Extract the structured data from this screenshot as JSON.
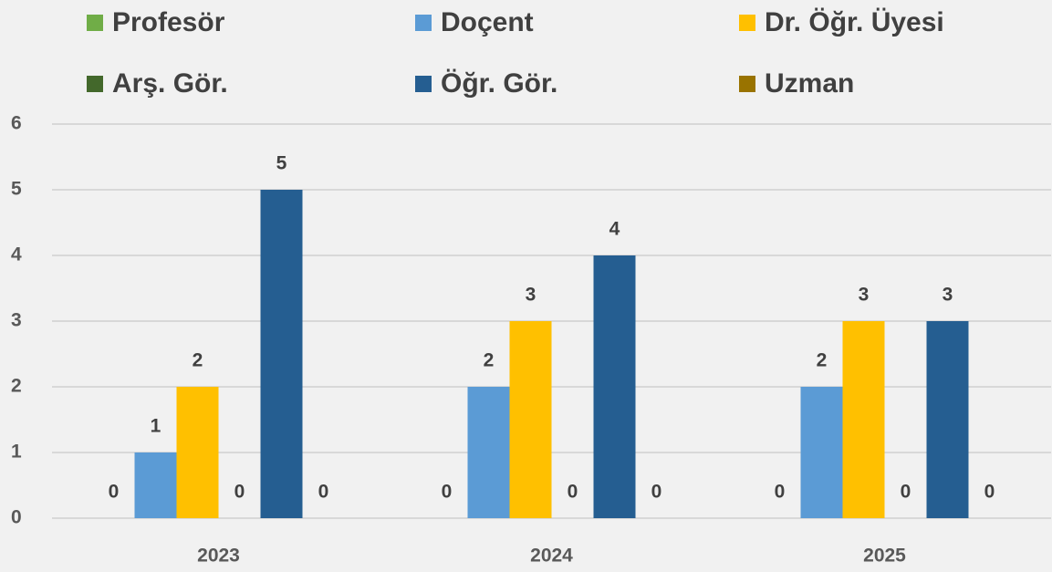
{
  "chart_data": {
    "type": "bar",
    "categories": [
      "2023",
      "2024",
      "2025"
    ],
    "series": [
      {
        "name": "Profesör",
        "color": "#70ad47",
        "values": [
          0,
          0,
          0
        ]
      },
      {
        "name": "Doçent",
        "color": "#5b9bd5",
        "values": [
          1,
          2,
          2
        ]
      },
      {
        "name": "Dr. Öğr. Üyesi",
        "color": "#ffc000",
        "values": [
          2,
          3,
          3
        ]
      },
      {
        "name": "Arş. Gör.",
        "color": "#43682b",
        "values": [
          0,
          0,
          0
        ]
      },
      {
        "name": "Öğr. Gör.",
        "color": "#255e91",
        "values": [
          5,
          4,
          3
        ]
      },
      {
        "name": "Uzman",
        "color": "#997300",
        "values": [
          0,
          0,
          0
        ]
      }
    ],
    "ylim": [
      0,
      6
    ],
    "yticks": [
      0,
      1,
      2,
      3,
      4,
      5,
      6
    ],
    "grid": true,
    "legend": "top"
  }
}
